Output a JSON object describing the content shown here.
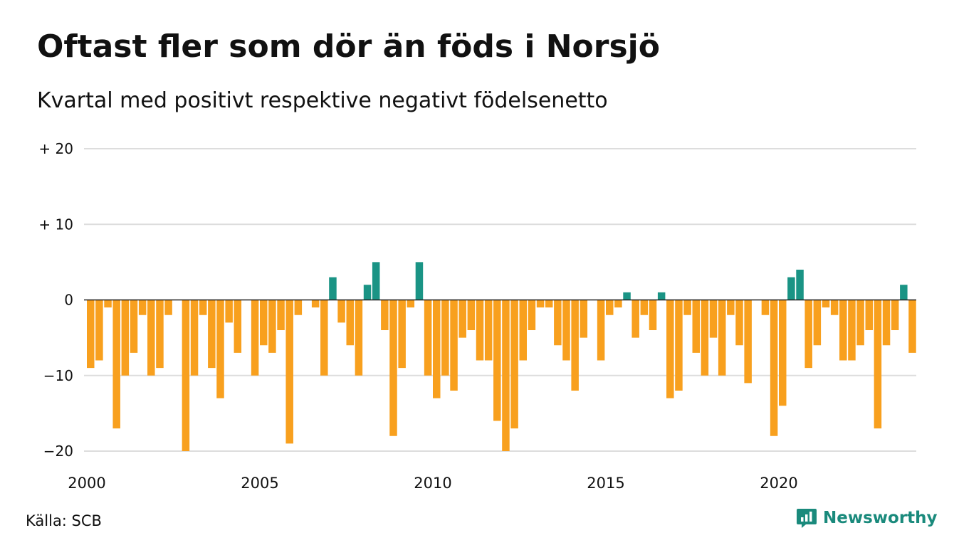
{
  "title": "Oftast fler som dör än föds i Norsjö",
  "subtitle": "Kvartal med positivt respektive negativt födelsenetto",
  "source": "Källa: SCB",
  "brand": "Newsworthy",
  "colors": {
    "positive": "#1a9485",
    "negative": "#f8a01e",
    "grid": "#dddddd",
    "zero_line": "#222222",
    "brand": "#1a8a7c"
  },
  "chart_data": {
    "type": "bar",
    "start_year": 2000,
    "periods_per_year": 4,
    "ylim": [
      -20,
      20
    ],
    "y_ticks": [
      {
        "value": 20,
        "label": "+ 20"
      },
      {
        "value": 10,
        "label": "+ 10"
      },
      {
        "value": 0,
        "label": "0"
      },
      {
        "value": -10,
        "label": "−10"
      },
      {
        "value": -20,
        "label": "−20"
      }
    ],
    "x_ticks": [
      {
        "year": 2000,
        "label": "2000"
      },
      {
        "year": 2005,
        "label": "2005"
      },
      {
        "year": 2010,
        "label": "2010"
      },
      {
        "year": 2015,
        "label": "2015"
      },
      {
        "year": 2020,
        "label": "2020"
      }
    ],
    "values": [
      -9,
      -8,
      -1,
      -17,
      -10,
      -7,
      -2,
      -10,
      -9,
      -2,
      0,
      -20,
      -10,
      -2,
      -9,
      -13,
      -3,
      -7,
      0,
      -10,
      -6,
      -7,
      -4,
      -19,
      -2,
      0,
      -1,
      -10,
      3,
      -3,
      -6,
      -10,
      2,
      5,
      -4,
      -18,
      -9,
      -1,
      5,
      -10,
      -13,
      -10,
      -12,
      -5,
      -4,
      -8,
      -8,
      -16,
      -20,
      -17,
      -8,
      -4,
      -1,
      -1,
      -6,
      -8,
      -12,
      -5,
      0,
      -8,
      -2,
      -1,
      1,
      -5,
      -2,
      -4,
      1,
      -13,
      -12,
      -2,
      -7,
      -10,
      -5,
      -10,
      -2,
      -6,
      -11,
      0,
      -2,
      -18,
      -14,
      3,
      4,
      -9,
      -6,
      -1,
      -2,
      -8,
      -8,
      -6,
      -4,
      -17,
      -6,
      -4,
      2,
      -7
    ],
    "grid": true
  }
}
